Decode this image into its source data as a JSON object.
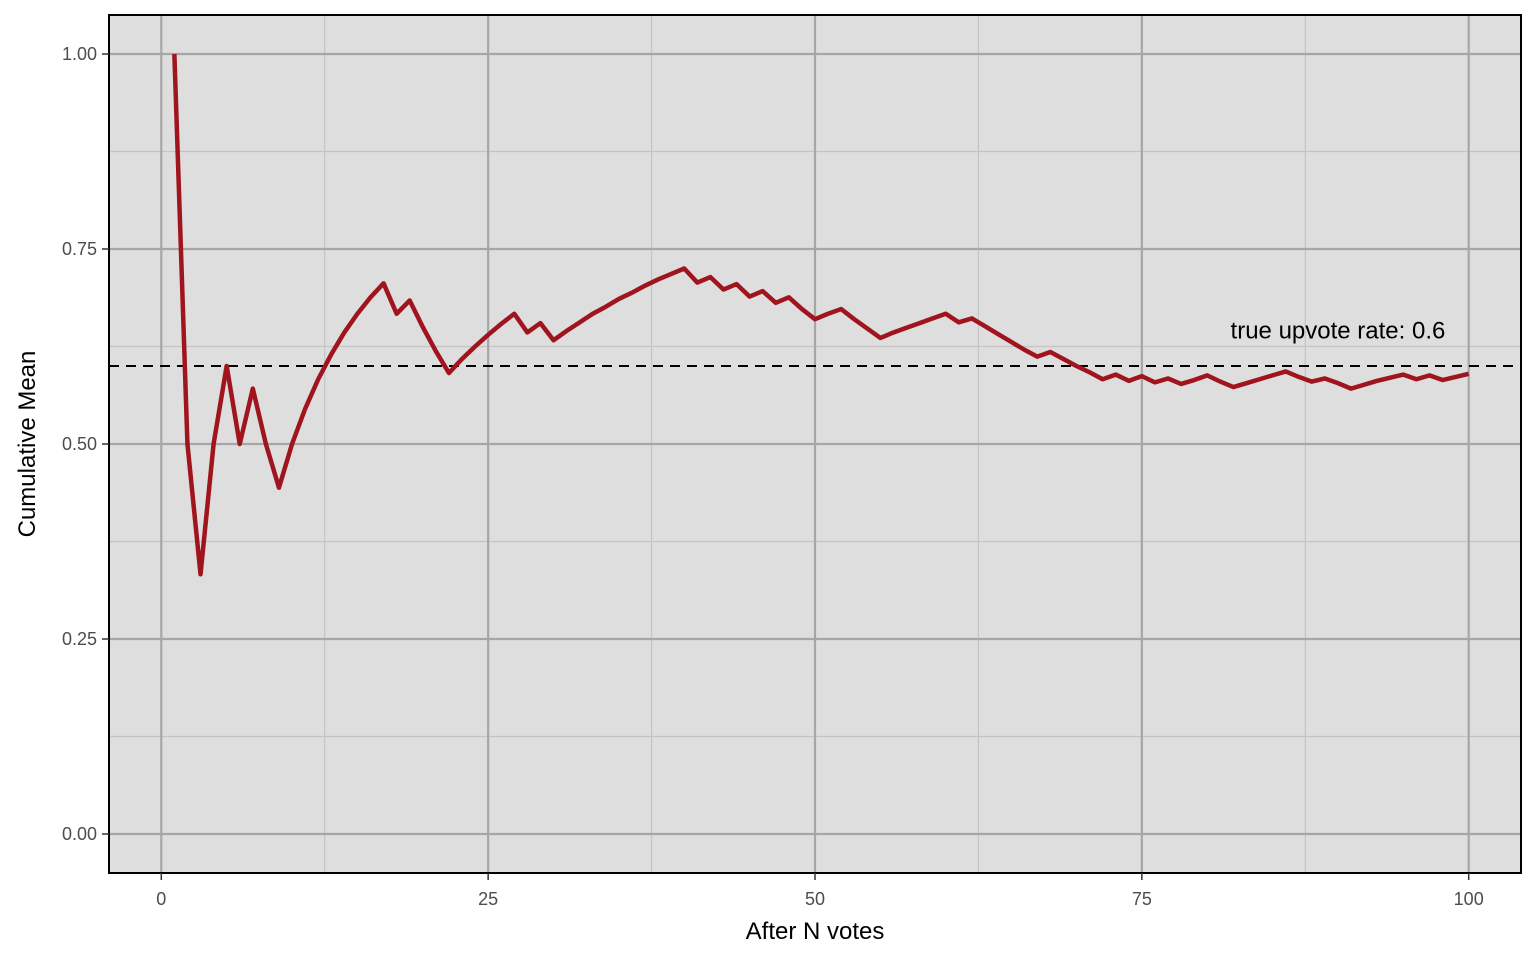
{
  "colors": {
    "panel_background": "#dedede",
    "grid_major": "#a6a6a6",
    "grid_minor": "#c4c4c4",
    "series_line": "#a0141e",
    "reference_line": "#000000",
    "panel_border": "#000000"
  },
  "chart_data": {
    "type": "line",
    "title": "",
    "xlabel": "After N votes",
    "ylabel": "Cumulative Mean",
    "xlim": [
      -4,
      104
    ],
    "ylim": [
      -0.05,
      1.05
    ],
    "x_ticks": [
      0,
      25,
      50,
      75,
      100
    ],
    "x_tick_labels": [
      "0",
      "25",
      "50",
      "75",
      "100"
    ],
    "y_ticks": [
      0,
      0.25,
      0.5,
      0.75,
      1.0
    ],
    "y_tick_labels": [
      "0.00",
      "0.25",
      "0.50",
      "0.75",
      "1.00"
    ],
    "x_minor_ticks": [
      12.5,
      37.5,
      62.5,
      87.5
    ],
    "y_minor_ticks": [
      0.125,
      0.375,
      0.625,
      0.875
    ],
    "grid": true,
    "reference_line": {
      "y": 0.6,
      "style": "dashed"
    },
    "annotation": {
      "text": "true upvote rate: 0.6",
      "x": 90,
      "y": 0.635
    },
    "series": [
      {
        "x": [
          1,
          2,
          3,
          4,
          5,
          6,
          7,
          8,
          9,
          10,
          11,
          12,
          13,
          14,
          15,
          16,
          17,
          18,
          19,
          20,
          21,
          22,
          23,
          24,
          25,
          26,
          27,
          28,
          29,
          30,
          31,
          32,
          33,
          34,
          35,
          36,
          37,
          38,
          39,
          40,
          41,
          42,
          43,
          44,
          45,
          46,
          47,
          48,
          49,
          50,
          51,
          52,
          53,
          54,
          55,
          56,
          57,
          58,
          59,
          60,
          61,
          62,
          63,
          64,
          65,
          66,
          67,
          68,
          69,
          70,
          71,
          72,
          73,
          74,
          75,
          76,
          77,
          78,
          79,
          80,
          81,
          82,
          83,
          84,
          85,
          86,
          87,
          88,
          89,
          90,
          91,
          92,
          93,
          94,
          95,
          96,
          97,
          98,
          99,
          100
        ],
        "values": [
          1.0,
          0.5,
          0.333,
          0.5,
          0.6,
          0.5,
          0.571,
          0.5,
          0.444,
          0.5,
          0.545,
          0.583,
          0.615,
          0.643,
          0.667,
          0.688,
          0.706,
          0.667,
          0.684,
          0.65,
          0.619,
          0.591,
          0.609,
          0.625,
          0.64,
          0.654,
          0.667,
          0.643,
          0.655,
          0.633,
          0.645,
          0.656,
          0.667,
          0.676,
          0.686,
          0.694,
          0.703,
          0.711,
          0.718,
          0.725,
          0.707,
          0.714,
          0.698,
          0.705,
          0.689,
          0.696,
          0.681,
          0.688,
          0.673,
          0.66,
          0.667,
          0.673,
          0.66,
          0.648,
          0.636,
          0.643,
          0.649,
          0.655,
          0.661,
          0.667,
          0.656,
          0.661,
          0.651,
          0.641,
          0.631,
          0.621,
          0.612,
          0.618,
          0.609,
          0.6,
          0.592,
          0.583,
          0.589,
          0.581,
          0.587,
          0.579,
          0.584,
          0.577,
          0.582,
          0.588,
          0.58,
          0.573,
          0.578,
          0.583,
          0.588,
          0.593,
          0.586,
          0.58,
          0.584,
          0.578,
          0.571,
          0.576,
          0.581,
          0.585,
          0.589,
          0.583,
          0.588,
          0.582,
          0.586,
          0.59
        ]
      }
    ]
  }
}
